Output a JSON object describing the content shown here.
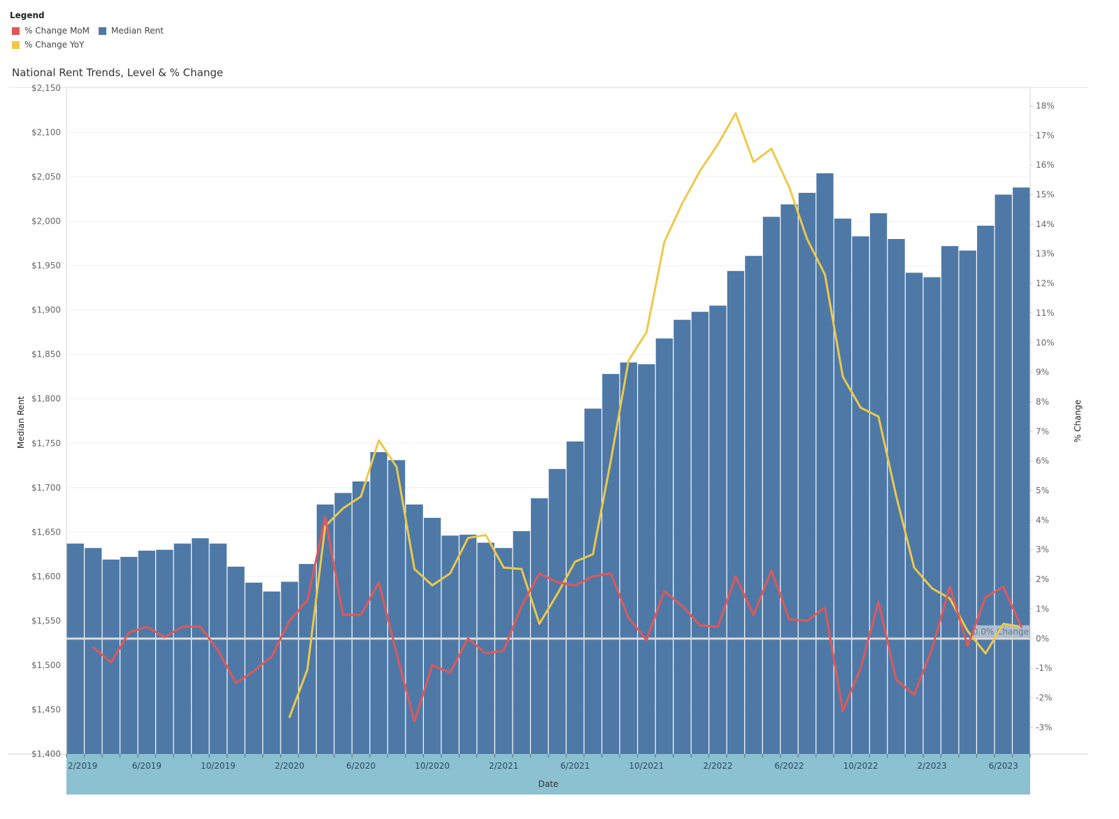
{
  "legend": {
    "title": "Legend",
    "items": [
      {
        "label": "% Change MoM",
        "color": "#e15759"
      },
      {
        "label": "% Change YoY",
        "color": "#edc948"
      },
      {
        "label": "Median Rent",
        "color": "#4e79a7"
      }
    ]
  },
  "chart_data": {
    "type": "bar",
    "title": "National Rent Trends, Level & % Change",
    "xlabel": "Date",
    "ylabel": "Median Rent",
    "y2label": "% Change",
    "ylim": [
      1400,
      2150
    ],
    "y2lim": [
      -3.9,
      18.6
    ],
    "grid": true,
    "legend_position": "top-left",
    "x_tick_labels": [
      "2/2019",
      "6/2019",
      "10/2019",
      "2/2020",
      "6/2020",
      "10/2020",
      "2/2021",
      "6/2021",
      "10/2021",
      "2/2022",
      "6/2022",
      "10/2022",
      "2/2023",
      "6/2023"
    ],
    "y_tick_labels": [
      "$1,400",
      "$1,450",
      "$1,500",
      "$1,550",
      "$1,600",
      "$1,650",
      "$1,700",
      "$1,750",
      "$1,800",
      "$1,850",
      "$1,900",
      "$1,950",
      "$2,000",
      "$2,050",
      "$2,100",
      "$2,150"
    ],
    "y2_tick_labels": [
      "-3%",
      "-2%",
      "-1%",
      "0%",
      "1%",
      "2%",
      "3%",
      "4%",
      "5%",
      "6%",
      "7%",
      "8%",
      "9%",
      "10%",
      "11%",
      "12%",
      "13%",
      "14%",
      "15%",
      "16%",
      "17%",
      "18%"
    ],
    "reference_line": {
      "label": "0.0% Change",
      "value": 0
    },
    "categories": [
      "2/2019",
      "3/2019",
      "4/2019",
      "5/2019",
      "6/2019",
      "7/2019",
      "8/2019",
      "9/2019",
      "10/2019",
      "11/2019",
      "12/2019",
      "1/2020",
      "2/2020",
      "3/2020",
      "4/2020",
      "5/2020",
      "6/2020",
      "7/2020",
      "8/2020",
      "9/2020",
      "10/2020",
      "11/2020",
      "12/2020",
      "1/2021",
      "2/2021",
      "3/2021",
      "4/2021",
      "5/2021",
      "6/2021",
      "7/2021",
      "8/2021",
      "9/2021",
      "10/2021",
      "11/2021",
      "12/2021",
      "1/2022",
      "2/2022",
      "3/2022",
      "4/2022",
      "5/2022",
      "6/2022",
      "7/2022",
      "8/2022",
      "9/2022",
      "10/2022",
      "11/2022",
      "12/2022",
      "1/2023",
      "2/2023",
      "3/2023",
      "4/2023",
      "5/2023",
      "6/2023",
      "7/2023"
    ],
    "series": [
      {
        "name": "Median Rent",
        "kind": "bar",
        "axis": "left",
        "values": [
          1637,
          1632,
          1619,
          1622,
          1629,
          1630,
          1637,
          1643,
          1637,
          1611,
          1593,
          1583,
          1594,
          1614,
          1681,
          1694,
          1707,
          1740,
          1731,
          1681,
          1666,
          1646,
          1647,
          1638,
          1632,
          1651,
          1688,
          1721,
          1752,
          1789,
          1828,
          1841,
          1839,
          1868,
          1889,
          1898,
          1905,
          1944,
          1961,
          2005,
          2019,
          2032,
          2054,
          2003,
          1983,
          2009,
          1980,
          1942,
          1937,
          1972,
          1967,
          1995,
          2030,
          2038
        ]
      },
      {
        "name": "% Change MoM",
        "kind": "line",
        "axis": "right",
        "values": [
          null,
          -0.3,
          -0.8,
          0.2,
          0.4,
          0.05,
          0.4,
          0.4,
          -0.4,
          -1.5,
          -1.1,
          -0.6,
          0.6,
          1.3,
          4.1,
          0.8,
          0.8,
          1.9,
          -0.5,
          -2.8,
          -0.9,
          -1.15,
          0.0,
          -0.5,
          -0.4,
          1.1,
          2.2,
          1.9,
          1.8,
          2.1,
          2.2,
          0.7,
          -0.05,
          1.6,
          1.1,
          0.45,
          0.4,
          2.1,
          0.8,
          2.3,
          0.65,
          0.6,
          1.05,
          -2.45,
          -1.0,
          1.25,
          -1.4,
          -1.9,
          -0.35,
          1.75,
          -0.25,
          1.4,
          1.75,
          0.4
        ]
      },
      {
        "name": "% Change YoY",
        "kind": "line",
        "axis": "right",
        "values": [
          null,
          null,
          null,
          null,
          null,
          null,
          null,
          null,
          null,
          null,
          null,
          null,
          -2.65,
          -1.05,
          3.8,
          4.4,
          4.8,
          6.7,
          5.8,
          2.35,
          1.8,
          2.2,
          3.4,
          3.5,
          2.4,
          2.35,
          0.5,
          1.5,
          2.6,
          2.85,
          6.0,
          9.4,
          10.35,
          13.4,
          14.7,
          15.8,
          16.7,
          17.75,
          16.1,
          16.55,
          15.25,
          13.5,
          12.3,
          8.85,
          7.8,
          7.5,
          4.8,
          2.4,
          1.7,
          1.35,
          0.25,
          -0.5,
          0.5,
          0.4
        ]
      }
    ]
  }
}
